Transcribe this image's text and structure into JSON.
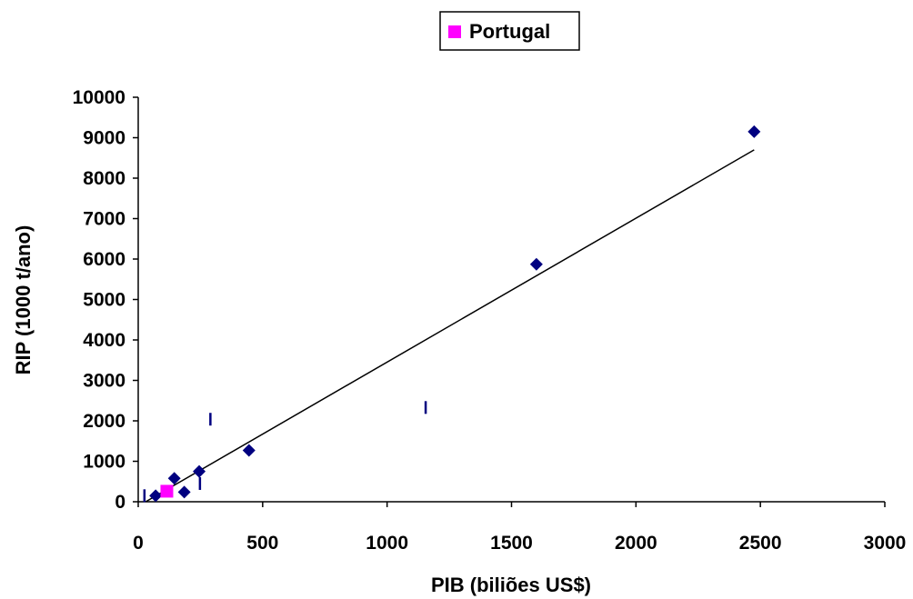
{
  "chart_data": {
    "type": "scatter",
    "xlabel": "PIB (biliões US$)",
    "ylabel": "RIP (1000 t/ano)",
    "xlim": [
      0,
      3000
    ],
    "ylim": [
      0,
      10000
    ],
    "xticks": [
      0,
      500,
      1000,
      1500,
      2000,
      2500,
      3000
    ],
    "yticks": [
      0,
      1000,
      2000,
      3000,
      4000,
      5000,
      6000,
      7000,
      8000,
      9000,
      10000
    ],
    "grid": false,
    "legend": {
      "position": "top-center",
      "entries": [
        "Portugal"
      ]
    },
    "colors": {
      "points": "#000080",
      "highlight": "#ff00ff",
      "trendline": "#000000"
    },
    "series": [
      {
        "marker": "diamond",
        "points": [
          {
            "x": 70,
            "y": 150
          },
          {
            "x": 145,
            "y": 580
          },
          {
            "x": 185,
            "y": 240
          },
          {
            "x": 245,
            "y": 750
          },
          {
            "x": 445,
            "y": 1270
          },
          {
            "x": 1600,
            "y": 5870
          },
          {
            "x": 2475,
            "y": 9150
          }
        ]
      },
      {
        "name": "Portugal",
        "marker": "square",
        "points": [
          {
            "x": 115,
            "y": 260
          }
        ]
      },
      {
        "marker": "dash",
        "points": [
          {
            "x": 25,
            "y": 150
          },
          {
            "x": 248,
            "y": 450
          },
          {
            "x": 290,
            "y": 2040
          },
          {
            "x": 1155,
            "y": 2330
          }
        ]
      }
    ],
    "trendline": {
      "x": [
        30,
        2475
      ],
      "y": [
        0,
        8700
      ]
    }
  }
}
